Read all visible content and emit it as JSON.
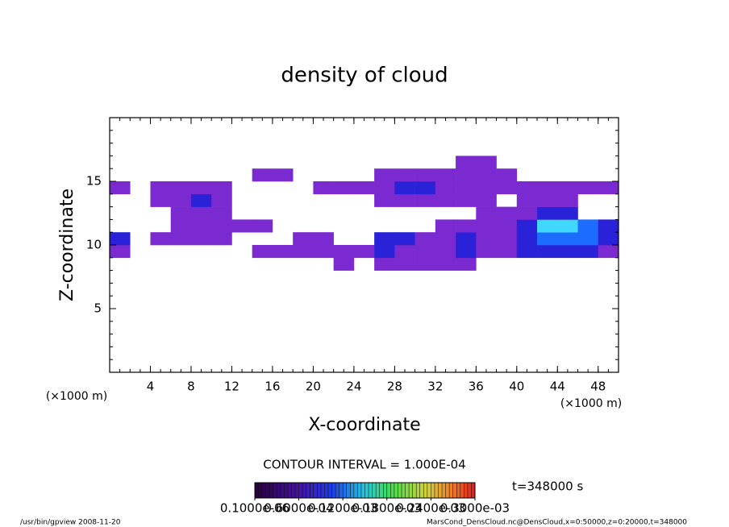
{
  "chart_data": {
    "type": "heatmap",
    "title": "density of cloud",
    "x_label": "X-coordinate",
    "y_label": "Z-coordinate",
    "x_unit": "(×1000 m)",
    "xlim": [
      0,
      50
    ],
    "xticks": [
      4,
      8,
      12,
      16,
      20,
      24,
      28,
      32,
      36,
      40,
      44,
      48
    ],
    "ylim": [
      0,
      20
    ],
    "yticks": [
      5,
      10,
      15
    ],
    "x_edges": [
      0,
      2,
      4,
      6,
      8,
      10,
      12,
      14,
      16,
      18,
      20,
      22,
      24,
      26,
      28,
      30,
      32,
      34,
      36,
      38,
      40,
      42,
      44,
      46,
      48,
      50
    ],
    "z_edges": [
      8,
      9,
      10,
      11,
      12,
      13,
      14,
      15,
      16,
      17
    ],
    "values": [
      [
        null,
        null,
        null,
        null,
        null,
        null,
        null,
        null,
        null,
        null,
        null,
        8e-05,
        null,
        8e-05,
        8e-05,
        8e-05,
        8e-05,
        8e-05,
        null,
        null,
        null,
        null,
        null,
        null,
        null
      ],
      [
        8e-05,
        null,
        null,
        null,
        null,
        null,
        null,
        8e-05,
        8e-05,
        8e-05,
        8e-05,
        8e-05,
        8e-05,
        0.00014,
        8e-05,
        8e-05,
        8e-05,
        0.00014,
        8e-05,
        8e-05,
        0.00014,
        0.00014,
        0.00014,
        0.00014,
        8e-05
      ],
      [
        0.00014,
        null,
        8e-05,
        8e-05,
        8e-05,
        8e-05,
        null,
        null,
        null,
        8e-05,
        8e-05,
        null,
        null,
        0.00014,
        0.00014,
        8e-05,
        8e-05,
        0.00014,
        8e-05,
        8e-05,
        0.00014,
        0.0002,
        0.0002,
        0.0002,
        0.00014
      ],
      [
        null,
        null,
        null,
        8e-05,
        8e-05,
        8e-05,
        8e-05,
        8e-05,
        null,
        null,
        null,
        null,
        null,
        null,
        null,
        null,
        8e-05,
        8e-05,
        8e-05,
        8e-05,
        0.00014,
        0.00026,
        0.00026,
        0.0002,
        0.00014
      ],
      [
        null,
        null,
        null,
        8e-05,
        8e-05,
        8e-05,
        null,
        null,
        null,
        null,
        null,
        null,
        null,
        null,
        null,
        null,
        null,
        null,
        8e-05,
        8e-05,
        8e-05,
        0.00014,
        0.00014,
        null,
        null
      ],
      [
        null,
        null,
        8e-05,
        8e-05,
        0.00014,
        8e-05,
        null,
        null,
        null,
        null,
        null,
        null,
        null,
        8e-05,
        8e-05,
        8e-05,
        8e-05,
        8e-05,
        8e-05,
        null,
        8e-05,
        8e-05,
        8e-05,
        null,
        null
      ],
      [
        8e-05,
        null,
        8e-05,
        8e-05,
        8e-05,
        8e-05,
        null,
        null,
        null,
        null,
        8e-05,
        8e-05,
        8e-05,
        8e-05,
        0.00014,
        0.00014,
        8e-05,
        8e-05,
        8e-05,
        8e-05,
        8e-05,
        8e-05,
        8e-05,
        8e-05,
        8e-05
      ],
      [
        null,
        null,
        null,
        null,
        null,
        null,
        null,
        8e-05,
        8e-05,
        null,
        null,
        null,
        null,
        8e-05,
        8e-05,
        8e-05,
        8e-05,
        8e-05,
        8e-05,
        8e-05,
        null,
        null,
        null,
        null,
        null
      ],
      [
        null,
        null,
        null,
        null,
        null,
        null,
        null,
        null,
        null,
        null,
        null,
        null,
        null,
        null,
        null,
        null,
        null,
        8e-05,
        8e-05,
        null,
        null,
        null,
        null,
        null,
        null
      ]
    ],
    "levels": [
      6e-05,
      0.00012,
      0.00018,
      0.00024
    ],
    "colors": [
      "#3c0068",
      "#7a2ad0",
      "#2a22d8",
      "#1c6cff",
      "#40d8ff"
    ],
    "contour_interval": "CONTOUR INTERVAL = 1.000E-04",
    "time_label": "t=348000 s",
    "colorbar_ticks": [
      {
        "value": 1e-07,
        "label": "0.1000e-06"
      },
      {
        "value": 6e-05,
        "label": "0.6000e-04"
      },
      {
        "value": 0.00012,
        "label": "0.1200e-03"
      },
      {
        "value": 0.00018,
        "label": "0.1800e-03"
      },
      {
        "value": 0.00024,
        "label": "0.2400e-03"
      },
      {
        "value": 0.0003,
        "label": "0.3000e-03"
      }
    ],
    "footer_left": "/usr/bin/gpview   2008-11-20",
    "footer_right": "MarsCond_DensCloud.nc@DensCloud,x=0:50000,z=0:20000,t=348000"
  }
}
